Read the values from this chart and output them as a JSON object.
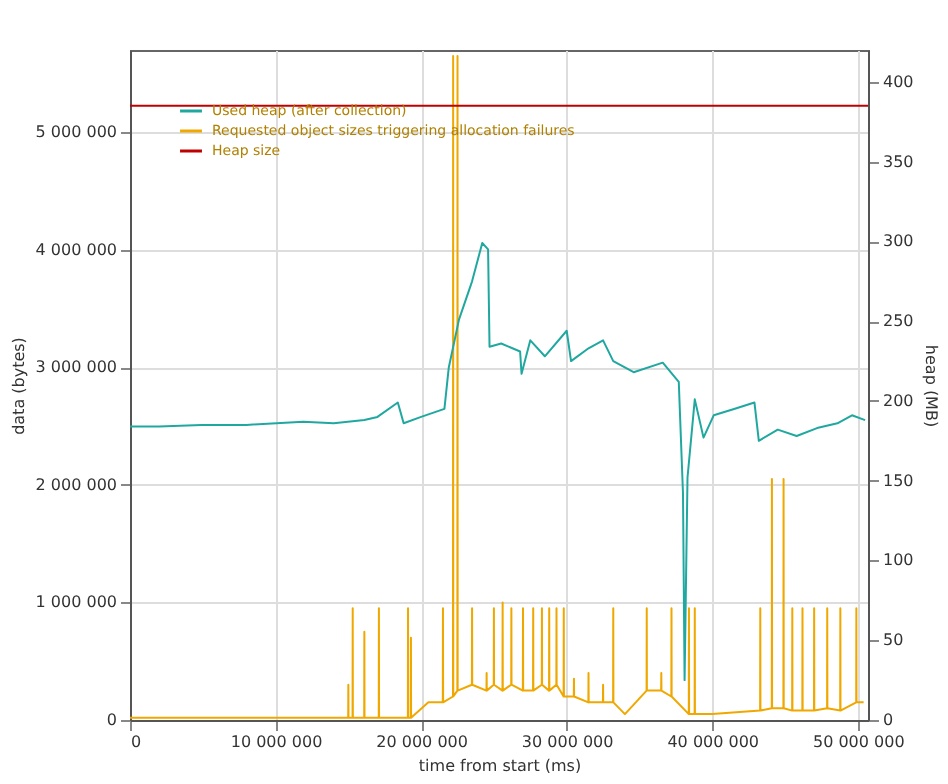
{
  "chart_data": {
    "type": "line",
    "xlabel": "time from start (ms)",
    "ylabel": "data (bytes)",
    "y2label": "heap (MB)",
    "xlim": [
      0,
      50700000
    ],
    "xticks": [
      {
        "value": 0,
        "label": "0"
      },
      {
        "value": 10000000,
        "label": "10 000 000"
      },
      {
        "value": 20000000,
        "label": "20 000 000"
      },
      {
        "value": 30000000,
        "label": "30 000 000"
      },
      {
        "value": 40000000,
        "label": "40 000 000"
      },
      {
        "value": 50000000,
        "label": "50 000 000"
      }
    ],
    "ylim": [
      0,
      5700000
    ],
    "yticks": [
      {
        "value": 0,
        "label": "0"
      },
      {
        "value": 1000000,
        "label": "1 000 000"
      },
      {
        "value": 2000000,
        "label": "2 000 000"
      },
      {
        "value": 3000000,
        "label": "3 000 000"
      },
      {
        "value": 4000000,
        "label": "4 000 000"
      },
      {
        "value": 5000000,
        "label": "5 000 000"
      }
    ],
    "y2lim": [
      0,
      420
    ],
    "y2ticks": [
      0,
      50,
      100,
      150,
      200,
      250,
      300,
      350,
      400
    ],
    "grid": true,
    "legend": "top left",
    "line_style": "solid",
    "marker": "none",
    "series": [
      {
        "name": "Used heap (after collection)",
        "color": "#20a8a0",
        "axis": "y2",
        "x": [
          0,
          2000000,
          4900000,
          8000000,
          11900000,
          14000000,
          16100000,
          17000000,
          18400000,
          18800000,
          20000000,
          21600000,
          21900000,
          22600000,
          23500000,
          24200000,
          24600000,
          24700000,
          25500000,
          26800000,
          26900000,
          27500000,
          28500000,
          30000000,
          30300000,
          31500000,
          32500000,
          33200000,
          34600000,
          36600000,
          37700000,
          37990000,
          38100000,
          38300000,
          38800000,
          39400000,
          40100000,
          41500000,
          42900000,
          43200000,
          44500000,
          45800000,
          47200000,
          48600000,
          49600000,
          50500000
        ],
        "values": [
          184,
          184,
          185,
          185,
          187,
          186,
          188,
          190,
          199,
          186,
          190,
          195,
          221,
          251,
          275,
          299,
          295,
          234,
          236,
          231,
          217,
          238,
          228,
          244,
          225,
          233,
          238,
          225,
          218,
          224,
          212,
          142,
          25,
          152,
          201,
          177,
          191,
          195,
          199,
          175,
          182,
          178,
          183,
          186,
          191,
          188
        ]
      },
      {
        "name": "Requested object sizes triggering allocation failures",
        "color": "#f0a800",
        "x": [
          0,
          14990000,
          15000000,
          15010000,
          15290000,
          15300000,
          15310000,
          16090000,
          16100000,
          16110000,
          17090000,
          17100000,
          17110000,
          19090000,
          19100000,
          19110000,
          19290000,
          19300000,
          19310000,
          20500000,
          21490000,
          21500000,
          21510000,
          22190000,
          22200000,
          22210000,
          22490000,
          22500000,
          22510000,
          23490000,
          23500000,
          23510000,
          24490000,
          24500000,
          24510000,
          24990000,
          25000000,
          25010000,
          25590000,
          25600000,
          25610000,
          26190000,
          26200000,
          26210000,
          26990000,
          27000000,
          27010000,
          27690000,
          27700000,
          27710000,
          28290000,
          28300000,
          28310000,
          28790000,
          28800000,
          28810000,
          29290000,
          29300000,
          29310000,
          29790000,
          29800000,
          29810000,
          30490000,
          30500000,
          30510000,
          31490000,
          31500000,
          31510000,
          32490000,
          32500000,
          32510000,
          33190000,
          33200000,
          33210000,
          34000000,
          35490000,
          35500000,
          35510000,
          36490000,
          36500000,
          36510000,
          37190000,
          37200000,
          37210000,
          38390000,
          38400000,
          38410000,
          38790000,
          38800000,
          38810000,
          40000000,
          43290000,
          43300000,
          43310000,
          44090000,
          44100000,
          44110000,
          44890000,
          44900000,
          44910000,
          45490000,
          45500000,
          45510000,
          46190000,
          46200000,
          46210000,
          46990000,
          47000000,
          47010000,
          47890000,
          47900000,
          47910000,
          48790000,
          48800000,
          48810000,
          49890000,
          49900000,
          49910000,
          50400000
        ],
        "values": [
          20000,
          20000,
          300000,
          20000,
          20000,
          950000,
          20000,
          20000,
          750000,
          20000,
          20000,
          950000,
          20000,
          20000,
          950000,
          20000,
          20000,
          700000,
          20000,
          150000,
          150000,
          950000,
          150000,
          200000,
          5650000,
          200000,
          250000,
          5650000,
          250000,
          300000,
          950000,
          300000,
          250000,
          400000,
          250000,
          300000,
          950000,
          300000,
          250000,
          1000000,
          250000,
          300000,
          950000,
          300000,
          250000,
          950000,
          250000,
          250000,
          950000,
          250000,
          300000,
          950000,
          300000,
          250000,
          950000,
          250000,
          300000,
          950000,
          300000,
          200000,
          950000,
          200000,
          200000,
          350000,
          200000,
          150000,
          400000,
          150000,
          150000,
          300000,
          150000,
          150000,
          950000,
          150000,
          50000,
          250000,
          950000,
          250000,
          250000,
          400000,
          250000,
          200000,
          950000,
          200000,
          50000,
          950000,
          50000,
          50000,
          950000,
          50000,
          50000,
          80000,
          950000,
          80000,
          100000,
          2050000,
          100000,
          100000,
          2050000,
          100000,
          80000,
          950000,
          80000,
          80000,
          950000,
          80000,
          80000,
          950000,
          80000,
          100000,
          950000,
          100000,
          80000,
          950000,
          80000,
          150000,
          950000,
          150000,
          150000
        ]
      },
      {
        "name": "Heap size",
        "color": "#c00000",
        "axis": "y2",
        "x": [
          0,
          50700000
        ],
        "values": [
          385,
          385
        ]
      }
    ]
  }
}
